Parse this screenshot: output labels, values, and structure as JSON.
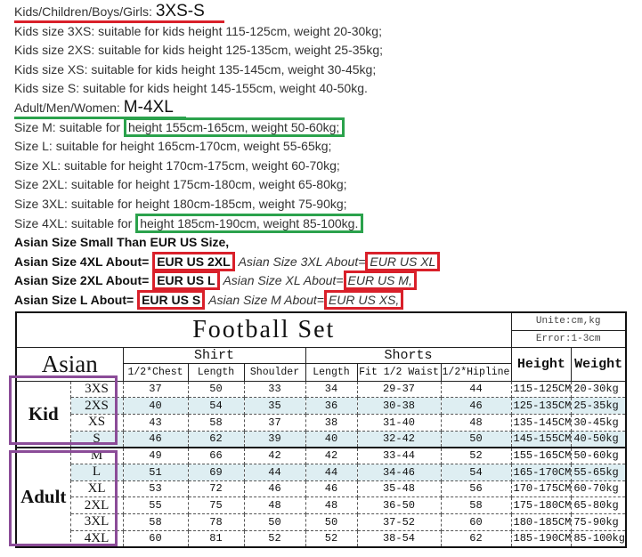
{
  "text": {
    "kids_heading": "Kids/Children/Boys/Girls:",
    "kids_range": "3XS-S",
    "kids_lines": [
      "Kids size 3XS: suitable for kids height 115-125cm, weight 20-30kg;",
      "Kids size 2XS: suitable for kids height 125-135cm, weight 25-35kg;",
      "Kids size XS: suitable for kids height 135-145cm, weight 30-45kg;",
      "Kids size S: suitable for kids height 145-155cm, weight 40-50kg."
    ],
    "adult_heading": "Adult/Men/Women:",
    "adult_range": "M-4XL",
    "size_m_prefix": "Size M: suitable for ",
    "size_m_highlight": "height 155cm-165cm, weight 50-60kg;",
    "adult_lines": [
      "Size L: suitable for height 165cm-170cm, weight 55-65kg;",
      "Size XL: suitable for height 170cm-175cm, weight 60-70kg;",
      "Size 2XL: suitable for height 175cm-180cm, weight 65-80kg;",
      "Size 3XL: suitable for height 180cm-185cm, weight 75-90kg;"
    ],
    "size_4xl_prefix": "Size 4XL: suitable for ",
    "size_4xl_highlight": "height 185cm-190cm, weight 85-100kg.",
    "asian_note": "Asian Size Small Than EUR US Size,",
    "conversions": [
      {
        "bold_label": "Asian Size 4XL About=",
        "bold_value": "EUR US 2XL",
        "italic_label": "Asian Size 3XL About=",
        "italic_value": "EUR US XL"
      },
      {
        "bold_label": "Asian Size 2XL About=",
        "bold_value": "EUR US L",
        "italic_label": "Asian Size XL About=",
        "italic_value": "EUR US M,"
      },
      {
        "bold_label": "Asian Size L About=",
        "bold_value": "EUR US S",
        "italic_label": "Asian Size M About=",
        "italic_value": "EUR US XS,"
      }
    ]
  },
  "table": {
    "title": "Football Set",
    "unit": "Unite:cm,kg",
    "error": "Error:1-3cm",
    "asian": "Asian",
    "shirt": "Shirt",
    "shorts": "Shorts",
    "height": "Height",
    "weight": "Weight",
    "columns": [
      "1/2*Chest",
      "Length",
      "Shoulder",
      "Length",
      "Fit 1/2 Waist",
      "1/2*Hipline"
    ],
    "kid_label": "Kid",
    "adult_label": "Adult",
    "shade_color": "#deeef2",
    "highlight_color": "#8b4c98",
    "rows": [
      {
        "size": "3XS",
        "vals": [
          "37",
          "50",
          "33",
          "34",
          "29-37",
          "44",
          "115-125CM",
          "20-30kg"
        ],
        "shaded": false
      },
      {
        "size": "2XS",
        "vals": [
          "40",
          "54",
          "35",
          "36",
          "30-38",
          "46",
          "125-135CM",
          "25-35kg"
        ],
        "shaded": true
      },
      {
        "size": "XS",
        "vals": [
          "43",
          "58",
          "37",
          "38",
          "31-40",
          "48",
          "135-145CM",
          "30-45kg"
        ],
        "shaded": false
      },
      {
        "size": "S",
        "vals": [
          "46",
          "62",
          "39",
          "40",
          "32-42",
          "50",
          "145-155CM",
          "40-50kg"
        ],
        "shaded": true
      },
      {
        "size": "M",
        "vals": [
          "49",
          "66",
          "42",
          "42",
          "33-44",
          "52",
          "155-165CM",
          "50-60kg"
        ],
        "shaded": false
      },
      {
        "size": "L",
        "vals": [
          "51",
          "69",
          "44",
          "44",
          "34-46",
          "54",
          "165-170CM",
          "55-65kg"
        ],
        "shaded": true
      },
      {
        "size": "XL",
        "vals": [
          "53",
          "72",
          "46",
          "46",
          "35-48",
          "56",
          "170-175CM",
          "60-70kg"
        ],
        "shaded": false
      },
      {
        "size": "2XL",
        "vals": [
          "55",
          "75",
          "48",
          "48",
          "36-50",
          "58",
          "175-180CM",
          "65-80kg"
        ],
        "shaded": false
      },
      {
        "size": "3XL",
        "vals": [
          "58",
          "78",
          "50",
          "50",
          "37-52",
          "60",
          "180-185CM",
          "75-90kg"
        ],
        "shaded": false
      },
      {
        "size": "4XL",
        "vals": [
          "60",
          "81",
          "52",
          "52",
          "38-54",
          "62",
          "185-190CM",
          "85-100kg"
        ],
        "shaded": false
      }
    ]
  }
}
